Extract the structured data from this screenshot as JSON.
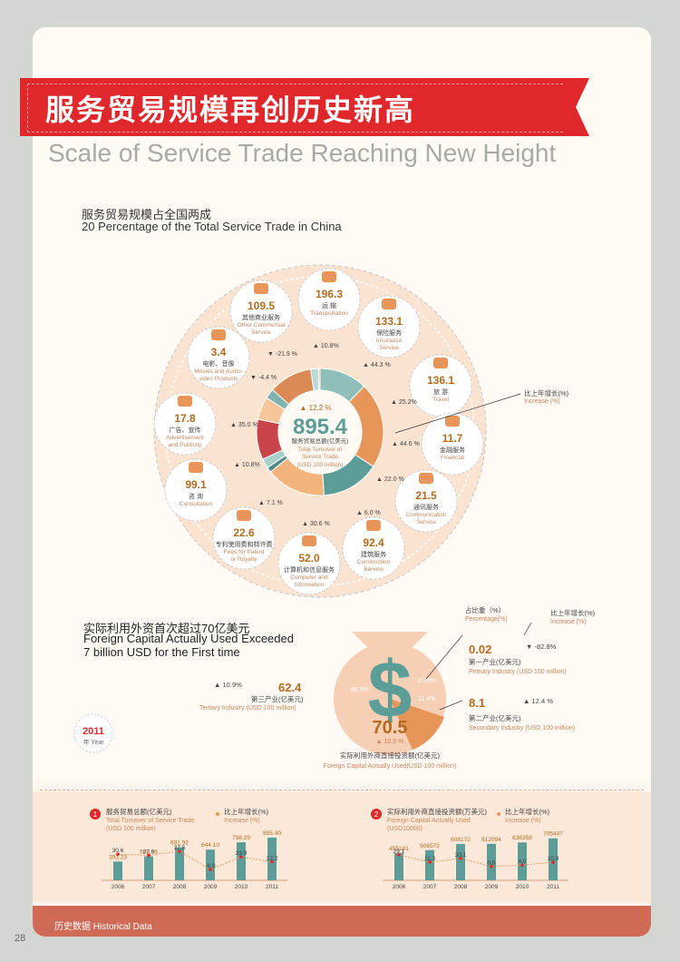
{
  "header": {
    "title_cn": "服务贸易规模再创历史新高",
    "title_en": "Scale of Service Trade Reaching New Height"
  },
  "section1": {
    "title_cn": "服务贸易规模占全国两成",
    "title_en": "20 Percentage of the Total Service Trade in China",
    "center": {
      "value": "895.4",
      "increase": "12.2 %",
      "label_cn": "服务贸易总额(亿美元)",
      "label_en1": "Total Turnover of",
      "label_en2": "Service Trade",
      "label_en3": "(USD 100 million)"
    },
    "legend_cn": "比上年增长(%)",
    "legend_en": "Increase (%)",
    "items": [
      {
        "value": "109.5",
        "cn": "其他商业服务",
        "en1": "Other Commercial",
        "en2": "Service",
        "increase": "-21.9 %",
        "dir": "down",
        "icon": "building-icon"
      },
      {
        "value": "196.3",
        "cn": "运  输",
        "en1": "Transportation",
        "en2": "",
        "increase": "10.8%",
        "dir": "up",
        "icon": "truck-icon"
      },
      {
        "value": "133.1",
        "cn": "保险服务",
        "en1": "Insurance",
        "en2": "Service",
        "increase": "44.3  %",
        "dir": "up",
        "icon": "ship-icon"
      },
      {
        "value": "136.1",
        "cn": "旅  游",
        "en1": "Travel",
        "en2": "",
        "increase": "25.2%",
        "dir": "up",
        "icon": "mountain-icon"
      },
      {
        "value": "11.7",
        "cn": "金融服务",
        "en1": "Financial",
        "en2": "",
        "increase": "44.6 %",
        "dir": "up",
        "icon": "money-bag-icon"
      },
      {
        "value": "21.5",
        "cn": "通讯服务",
        "en1": "Communication",
        "en2": "Service",
        "increase": "22.0 %",
        "dir": "up",
        "icon": "phone-icon"
      },
      {
        "value": "92.4",
        "cn": "建筑服务",
        "en1": "Construction",
        "en2": "Service",
        "increase": "6.0 %",
        "dir": "up",
        "icon": "tower-icon"
      },
      {
        "value": "52.0",
        "cn": "计算机和信息服务",
        "en1": "Computer and",
        "en2": "Information",
        "increase": "30.6 %",
        "dir": "up",
        "icon": "computer-icon"
      },
      {
        "value": "22.6",
        "cn": "专利使用费和特许费",
        "en1": "Fees for Patent",
        "en2": "or Royalty",
        "increase": "7.1 %",
        "dir": "up",
        "icon": "lightbulb-icon"
      },
      {
        "value": "99.1",
        "cn": "咨  询",
        "en1": "Consultation",
        "en2": "",
        "increase": "10.8%",
        "dir": "up",
        "icon": "consult-icon"
      },
      {
        "value": "17.8",
        "cn": "广告、宣传",
        "en1": "Advertisement",
        "en2": "and Publicity",
        "increase": "35.0 %",
        "dir": "up",
        "icon": "eye-icon"
      },
      {
        "value": "3.4",
        "cn": "电影、音像",
        "en1": "Movies and Audio-",
        "en2": "video Products",
        "increase": "-4.4 %",
        "dir": "down",
        "icon": "film-icon"
      }
    ]
  },
  "section2": {
    "title_cn": "实际利用外资首次超过70亿美元",
    "title_en1": "Foreign Capital Actually Used Exceeded",
    "title_en2": "7 billion USD for the First time",
    "year": "2011",
    "year_label": "年 Year",
    "total": {
      "value": "70.5",
      "increase": "10.9 %",
      "label_cn": "实际利用外商直接投资额(亿美元)",
      "label_en": "Foreign Capital Actually Used(USD 100 million)"
    },
    "share_label_cn": "占比重（%）",
    "share_label_en": "Percentage(%)",
    "growth_label_cn": "比上年增长(%)",
    "growth_label_en": "Increase (%)",
    "tertiary": {
      "value": "62.4",
      "share": "88.5%",
      "increase": "10.9%",
      "cn": "第三产业(亿美元)",
      "en": "Tertiary Industry (USD 100 million)"
    },
    "primary": {
      "value": "0.02",
      "share": "0.03%",
      "increase": "-82.8%",
      "cn": "第一产业(亿美元)",
      "en": "Primary Industry (USD 100 million)"
    },
    "secondary": {
      "value": "8.1",
      "share": "11.4%",
      "increase": "12.4 %",
      "cn": "第二产业(亿美元)",
      "en": "Secondary Industry (USD 100 million)"
    }
  },
  "chart_data": [
    {
      "type": "bar",
      "title": "服务贸易总额(亿美元) Total Turnover of Service Trade (USD 100 million)",
      "categories": [
        "2006",
        "2007",
        "2008",
        "2009",
        "2010",
        "2011"
      ],
      "values": [
        393.23,
        503.06,
        691.92,
        644.1,
        798.29,
        895.4
      ],
      "value_labels": [
        "393.23",
        "503.06",
        "691.92",
        "644.10",
        "798.29",
        "895.40"
      ],
      "line_label": "比上年增长(%) Increase (%)",
      "growth": [
        30.6,
        27.9,
        37.5,
        -6.9,
        23.9,
        12.2
      ],
      "growth_labels": [
        "30.6",
        "27.9",
        "37.5",
        "-6.9",
        "23.9",
        "12.2"
      ],
      "ylim": [
        0,
        1000
      ]
    },
    {
      "type": "bar",
      "title": "实际利用外商直接投资额(万美元) Foreign Capital Actually Used (USD10000)",
      "categories": [
        "2006",
        "2007",
        "2008",
        "2009",
        "2010",
        "2011"
      ],
      "values": [
        455191,
        506572,
        608172,
        612094,
        636358,
        705447
      ],
      "value_labels": [
        "455191",
        "506572",
        "608172",
        "612094",
        "636358",
        "705447"
      ],
      "line_label": "比上年增长(%) Increase (%)",
      "growth": [
        29.1,
        11.3,
        20.1,
        0.6,
        4.0,
        10.9
      ],
      "growth_labels": [
        "29.1",
        "11.3",
        "20.1",
        "0.6",
        "4.0",
        "10.9"
      ],
      "ylim": [
        0,
        800000
      ]
    }
  ],
  "footer": {
    "label": "历史数据    Historical Data",
    "page_number": "28"
  },
  "colors": {
    "red": "#e0272b",
    "salmon": "#f6cfb4",
    "teal": "#5c9d98",
    "orange": "#e8955a",
    "brown": "#b36b1f"
  }
}
